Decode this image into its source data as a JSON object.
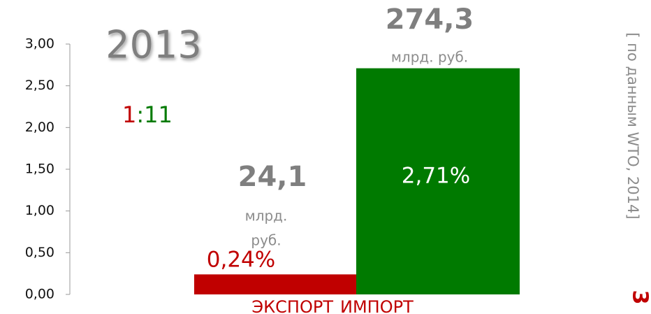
{
  "chart_data": {
    "type": "bar",
    "categories": [
      "ЭКСПОРТ",
      "ИМПОРТ"
    ],
    "values": [
      0.24,
      2.71
    ],
    "value_labels": [
      "0,24%",
      "2,71%"
    ],
    "colors": [
      "#c00000",
      "#007a00"
    ],
    "ylim": [
      0,
      3
    ],
    "yticks": [
      {
        "value": 0,
        "label": "0,00"
      },
      {
        "value": 0.5,
        "label": "0,50"
      },
      {
        "value": 1,
        "label": "1,00"
      },
      {
        "value": 1.5,
        "label": "1,50"
      },
      {
        "value": 2,
        "label": "2,00"
      },
      {
        "value": 2.5,
        "label": "2,50"
      },
      {
        "value": 3,
        "label": "3,00"
      }
    ],
    "year": "2013",
    "ratio": [
      "1",
      ":11"
    ],
    "export_amount": "24,1",
    "export_unit": [
      "млрд.",
      "руб."
    ],
    "import_amount": "274,3",
    "import_unit": "млрд. руб.",
    "source": "[ по данным WTO, 2014]",
    "edge_text": "3"
  }
}
